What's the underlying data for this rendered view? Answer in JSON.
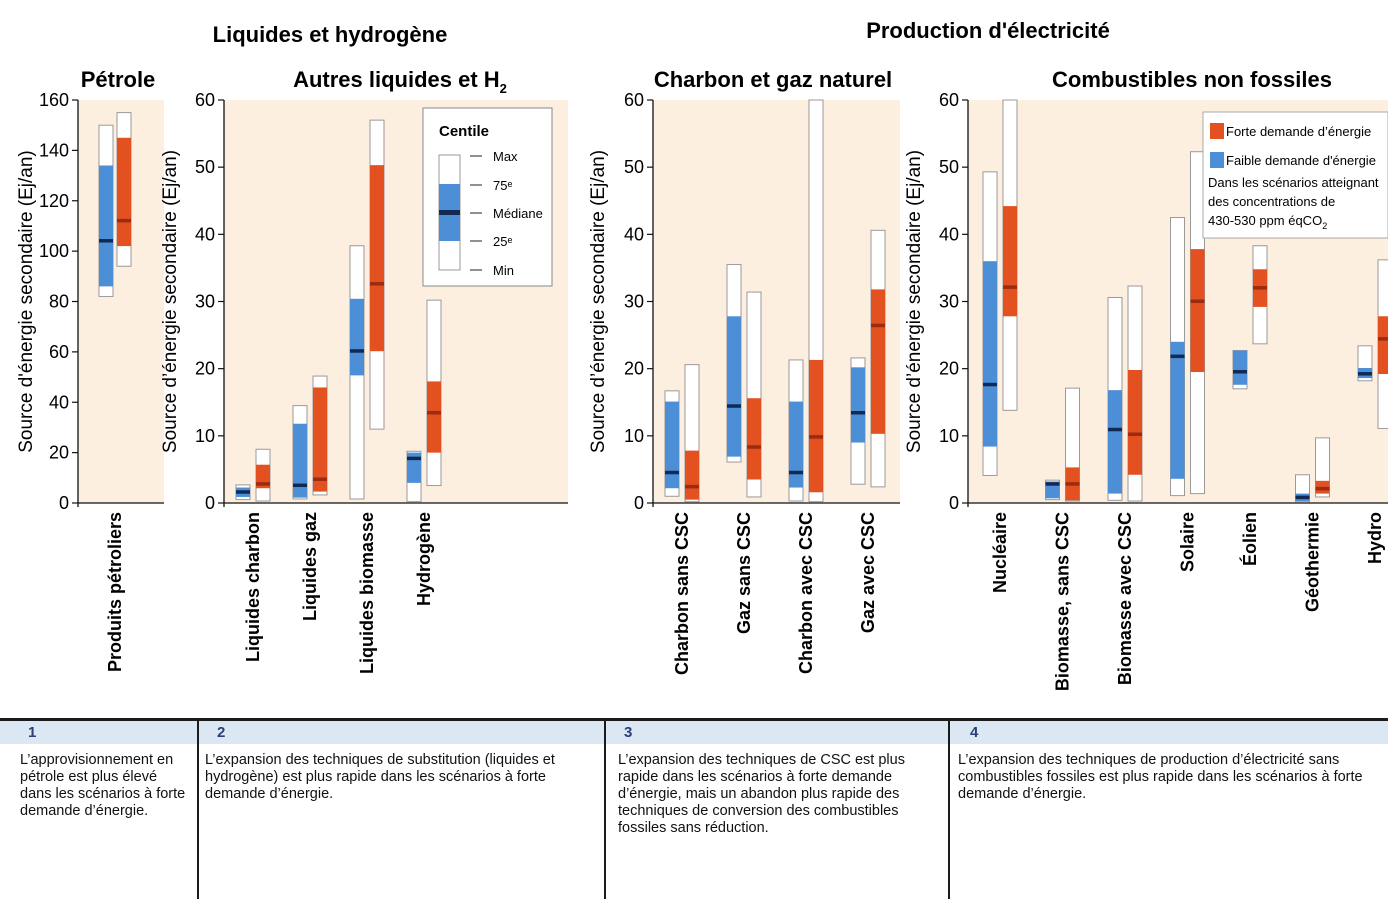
{
  "titles": {
    "left_section": "Liquides et hydrogène",
    "right_section": "Production d'électricité"
  },
  "colors": {
    "high_demand": "#e2511f",
    "low_demand": "#4c8fd6",
    "high_median": "#9c2b10",
    "low_median": "#102a55",
    "panel_bg": "#fdefdf"
  },
  "legend": {
    "centile_title": "Centile",
    "max": "Max",
    "p75": "75ᵉ",
    "median": "Médiane",
    "p25": "25ᵉ",
    "min": "Min",
    "high": "Forte demande d’énergie",
    "low": "Faible demande d'énergie",
    "note_line1": "Dans les scénarios atteignant",
    "note_line2": "des concentrations de",
    "note_line3": "430-530 ppm éqCO",
    "note_sub": "2"
  },
  "chart_data": [
    {
      "type": "box",
      "title": "Pétrole",
      "ylabel": "Source d'énergie secondaire (Ej/an)",
      "ylim": [
        0,
        160
      ],
      "yticks": [
        0,
        20,
        40,
        60,
        80,
        100,
        120,
        140,
        160
      ],
      "categories": [
        "Produits pétroliers"
      ],
      "series": [
        {
          "name": "Faible demande d'énergie",
          "values": [
            {
              "min": 82,
              "p25": 86,
              "median": 104,
              "p75": 134,
              "max": 150
            }
          ]
        },
        {
          "name": "Forte demande d’énergie",
          "values": [
            {
              "min": 94,
              "p25": 102,
              "median": 112,
              "p75": 145,
              "max": 155
            }
          ]
        }
      ]
    },
    {
      "type": "box",
      "title": "Autres liquides et H",
      "title_sub": "2",
      "ylabel": "Source d’énergie secondaire (Ej/an)",
      "ylim": [
        0,
        60
      ],
      "yticks": [
        0,
        10,
        20,
        30,
        40,
        50,
        60
      ],
      "categories": [
        "Liquides charbon",
        "Liquides gaz",
        "Liquides biomasse",
        "Hydrogène"
      ],
      "series": [
        {
          "name": "Faible demande d'énergie",
          "values": [
            {
              "min": 0.5,
              "p25": 0.9,
              "median": 1.6,
              "p75": 2.3,
              "max": 2.7
            },
            {
              "min": 0.6,
              "p25": 0.8,
              "median": 2.6,
              "p75": 11.8,
              "max": 14.5
            },
            {
              "min": 0.6,
              "p25": 19,
              "median": 22.6,
              "p75": 30.4,
              "max": 38.3
            },
            {
              "min": 0.2,
              "p25": 3,
              "median": 6.6,
              "p75": 7.5,
              "max": 7.7
            }
          ]
        },
        {
          "name": "Forte demande d’énergie",
          "values": [
            {
              "min": 0.3,
              "p25": 2.2,
              "median": 2.8,
              "p75": 5.7,
              "max": 8
            },
            {
              "min": 1.2,
              "p25": 1.7,
              "median": 3.5,
              "p75": 17.2,
              "max": 18.9
            },
            {
              "min": 11,
              "p25": 22.6,
              "median": 32.6,
              "p75": 50.3,
              "max": 57
            },
            {
              "min": 2.6,
              "p25": 7.5,
              "median": 13.4,
              "p75": 18.1,
              "max": 30.2
            }
          ]
        }
      ]
    },
    {
      "type": "box",
      "title": "Charbon et gaz naturel",
      "ylabel": "Source d’énergie secondaire (Ej/an)",
      "ylim": [
        0,
        60
      ],
      "yticks": [
        0,
        10,
        20,
        30,
        40,
        50,
        60
      ],
      "categories": [
        "Charbon sans CSC",
        "Gaz sans CSC",
        "Charbon avec CSC",
        "Gaz avec CSC"
      ],
      "series": [
        {
          "name": "Faible demande d'énergie",
          "values": [
            {
              "min": 1,
              "p25": 2.2,
              "median": 4.5,
              "p75": 15.1,
              "max": 16.7
            },
            {
              "min": 6.1,
              "p25": 6.9,
              "median": 14.4,
              "p75": 27.8,
              "max": 35.5
            },
            {
              "min": 0.3,
              "p25": 2.3,
              "median": 4.5,
              "p75": 15.1,
              "max": 21.3
            },
            {
              "min": 2.8,
              "p25": 9,
              "median": 13.4,
              "p75": 20.2,
              "max": 21.6
            }
          ]
        },
        {
          "name": "Forte demande d’énergie",
          "values": [
            {
              "min": 0.2,
              "p25": 0.5,
              "median": 2.4,
              "p75": 7.8,
              "max": 20.6
            },
            {
              "min": 0.9,
              "p25": 3.5,
              "median": 8.3,
              "p75": 15.6,
              "max": 31.4
            },
            {
              "min": 0.2,
              "p25": 1.6,
              "median": 9.8,
              "p75": 21.3,
              "max": 60
            },
            {
              "min": 2.4,
              "p25": 10.3,
              "median": 26.4,
              "p75": 31.8,
              "max": 40.6
            }
          ]
        }
      ]
    },
    {
      "type": "box",
      "title": "Combustibles non fossiles",
      "ylabel": "Source d’énergie secondaire (Ej/an)",
      "ylim": [
        0,
        60
      ],
      "yticks": [
        0,
        10,
        20,
        30,
        40,
        50,
        60
      ],
      "categories": [
        "Nucléaire",
        "Biomasse, sans CSC",
        "Biomasse avec CSC",
        "Solaire",
        "Éolien",
        "Géothermie",
        "Hydro"
      ],
      "series": [
        {
          "name": "Faible demande d'énergie",
          "values": [
            {
              "min": 4.1,
              "p25": 8.4,
              "median": 17.6,
              "p75": 36,
              "max": 49.3
            },
            {
              "min": 0.5,
              "p25": 0.7,
              "median": 2.8,
              "p75": 3.2,
              "max": 3.4
            },
            {
              "min": 0.4,
              "p25": 1.4,
              "median": 10.9,
              "p75": 16.8,
              "max": 30.6
            },
            {
              "min": 1.1,
              "p25": 3.6,
              "median": 21.8,
              "p75": 24,
              "max": 42.5
            },
            {
              "min": 17,
              "p25": 17.6,
              "median": 19.5,
              "p75": 22.7,
              "max": 22.7
            },
            {
              "min": 0.2,
              "p25": 0.3,
              "median": 0.8,
              "p75": 1.4,
              "max": 4.2
            },
            {
              "min": 18.2,
              "p25": 18.6,
              "median": 19.2,
              "p75": 20.1,
              "max": 23.4
            }
          ]
        },
        {
          "name": "Forte demande d’énergie",
          "values": [
            {
              "min": 13.8,
              "p25": 27.8,
              "median": 32.1,
              "p75": 44.2,
              "max": 60
            },
            {
              "min": 0.3,
              "p25": 0.4,
              "median": 2.8,
              "p75": 5.3,
              "max": 17.1
            },
            {
              "min": 0.3,
              "p25": 4.2,
              "median": 10.2,
              "p75": 19.8,
              "max": 32.3
            },
            {
              "min": 1.4,
              "p25": 19.5,
              "median": 30,
              "p75": 37.8,
              "max": 52.3
            },
            {
              "min": 23.7,
              "p25": 29.2,
              "median": 32,
              "p75": 34.8,
              "max": 38.3
            },
            {
              "min": 0.9,
              "p25": 1.4,
              "median": 2.1,
              "p75": 3.3,
              "max": 9.7
            },
            {
              "min": 11.1,
              "p25": 19.2,
              "median": 24.4,
              "p75": 27.8,
              "max": 36.2
            }
          ]
        }
      ]
    }
  ],
  "notes": [
    {
      "num": "1",
      "text": "L’approvisionnement en pétrole est plus élevé dans les scénarios à forte demande d’énergie."
    },
    {
      "num": "2",
      "text": "L’expansion des techniques de substitution (liquides et hydrogène) est plus rapide dans les scénarios à forte demande d’énergie."
    },
    {
      "num": "3",
      "text": "L’expansion des techniques de CSC est plus rapide dans les scénarios à forte demande d’énergie, mais un abandon plus rapide des techniques de conversion des combustibles fossiles sans réduction."
    },
    {
      "num": "4",
      "text": "L’expansion des techniques de production d’électricité sans combustibles fossiles est plus rapide dans les scénarios à forte demande d’énergie."
    }
  ]
}
